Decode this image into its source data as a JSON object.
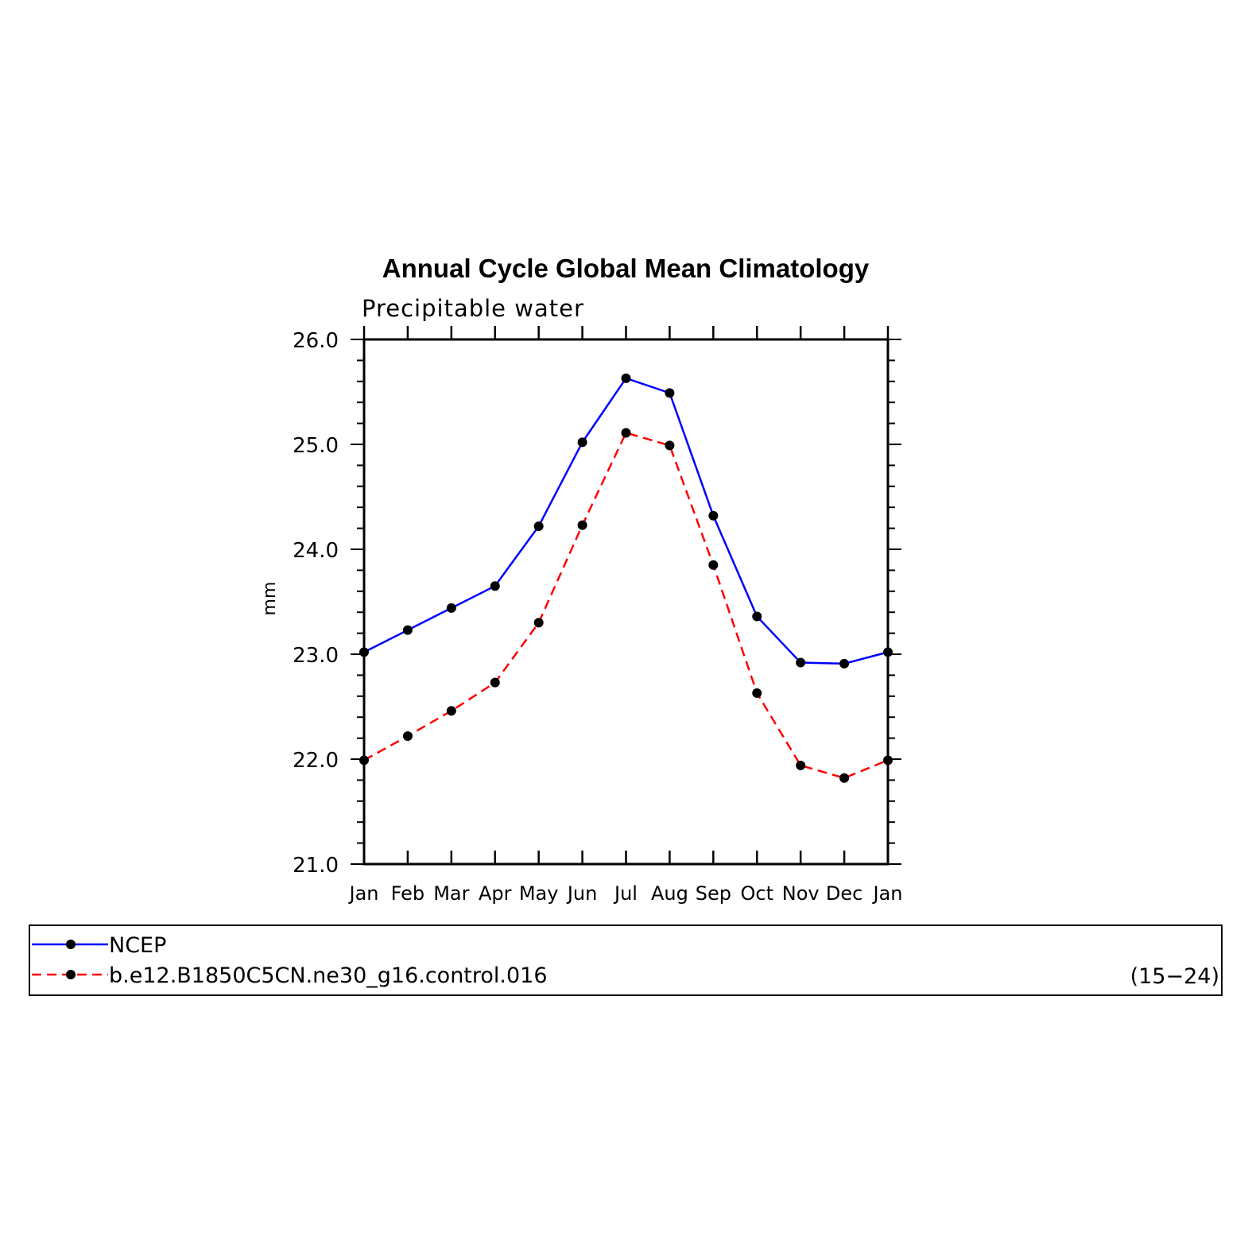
{
  "chart_data": {
    "type": "line",
    "title": "Annual Cycle Global Mean Climatology",
    "subtitle": "Precipitable water",
    "xlabel": "",
    "ylabel": "mm",
    "categories": [
      "Jan",
      "Feb",
      "Mar",
      "Apr",
      "May",
      "Jun",
      "Jul",
      "Aug",
      "Sep",
      "Oct",
      "Nov",
      "Dec",
      "Jan"
    ],
    "ylim": [
      21.0,
      26.0
    ],
    "yticks": [
      "21.0",
      "22.0",
      "23.0",
      "24.0",
      "25.0",
      "26.0"
    ],
    "grid": false,
    "legend_position": "bottom",
    "legend_note": "(15−24)",
    "series": [
      {
        "name": "NCEP",
        "color": "#0000ff",
        "dash": "solid",
        "values": [
          23.02,
          23.23,
          23.44,
          23.65,
          24.22,
          25.02,
          25.63,
          25.49,
          24.32,
          23.36,
          22.92,
          22.91,
          23.02
        ]
      },
      {
        "name": "b.e12.B1850C5CN.ne30_g16.control.016",
        "color": "#ff0000",
        "dash": "dashed",
        "values": [
          21.99,
          22.22,
          22.46,
          22.73,
          23.3,
          24.23,
          25.11,
          24.99,
          23.85,
          22.63,
          21.94,
          21.82,
          21.99
        ]
      }
    ]
  }
}
